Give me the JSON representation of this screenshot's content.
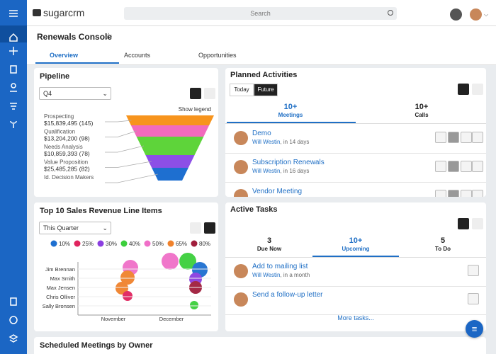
{
  "app": {
    "logo": "sugarcrm",
    "search": "Search"
  },
  "page": {
    "title": "Renewals Console",
    "tabs": [
      "Overview",
      "Accounts",
      "Opportunities"
    ]
  },
  "pipeline": {
    "title": "Pipeline",
    "period": "Q4",
    "legend_toggle": "Show legend",
    "stages": [
      {
        "name": "Prospecting",
        "value": "$15,839,495 (145)",
        "color": "#f7941d"
      },
      {
        "name": "Qualification",
        "value": "$13,204,200 (98)",
        "color": "#f26bbd"
      },
      {
        "name": "Needs Analysis",
        "value": "$10,859,393 (78)",
        "color": "#5ed43a"
      },
      {
        "name": "Value Proposition",
        "value": "$25,485,285 (82)",
        "color": "#8c4fe6"
      },
      {
        "name": "Id. Decision Makers",
        "color": "#1e6fd0"
      }
    ]
  },
  "activities": {
    "title": "Planned Activities",
    "filters": [
      "Today",
      "Future"
    ],
    "tabs": [
      {
        "count": "10+",
        "label": "Meetings"
      },
      {
        "count": "10+",
        "label": "Calls"
      }
    ],
    "items": [
      {
        "title": "Demo",
        "owner": "Will Westin",
        "due": ", in 14 days"
      },
      {
        "title": "Subscription Renewals",
        "owner": "Will Westin",
        "due": ", in 16 days"
      },
      {
        "title": "Vendor Meeting"
      }
    ]
  },
  "sales": {
    "title": "Top 10 Sales Revenue Line Items",
    "period": "This Quarter",
    "legend": [
      {
        "label": "10%",
        "color": "#1e6fd0"
      },
      {
        "label": "25%",
        "color": "#e0245e"
      },
      {
        "label": "30%",
        "color": "#8b3fe0"
      },
      {
        "label": "40%",
        "color": "#3ccf3c"
      },
      {
        "label": "50%",
        "color": "#f06fc8"
      },
      {
        "label": "65%",
        "color": "#f0822c"
      },
      {
        "label": "80%",
        "color": "#a01e3c"
      }
    ],
    "people": [
      "Jim Brennan",
      "Max Smith",
      "Max Jensen",
      "Chris Olliver",
      "Sally Bronsen"
    ],
    "months": [
      "November",
      "December"
    ]
  },
  "tasks": {
    "title": "Active Tasks",
    "tabs": [
      {
        "count": "3",
        "label": "Due Now"
      },
      {
        "count": "10+",
        "label": "Upcoming"
      },
      {
        "count": "5",
        "label": "To Do"
      }
    ],
    "items": [
      {
        "title": "Add to mailing list",
        "owner": "Will Westin",
        "due": ", in a month"
      },
      {
        "title": "Send a follow-up letter"
      }
    ],
    "more": "More tasks..."
  },
  "footer_dashlet": "Scheduled Meetings by Owner"
}
